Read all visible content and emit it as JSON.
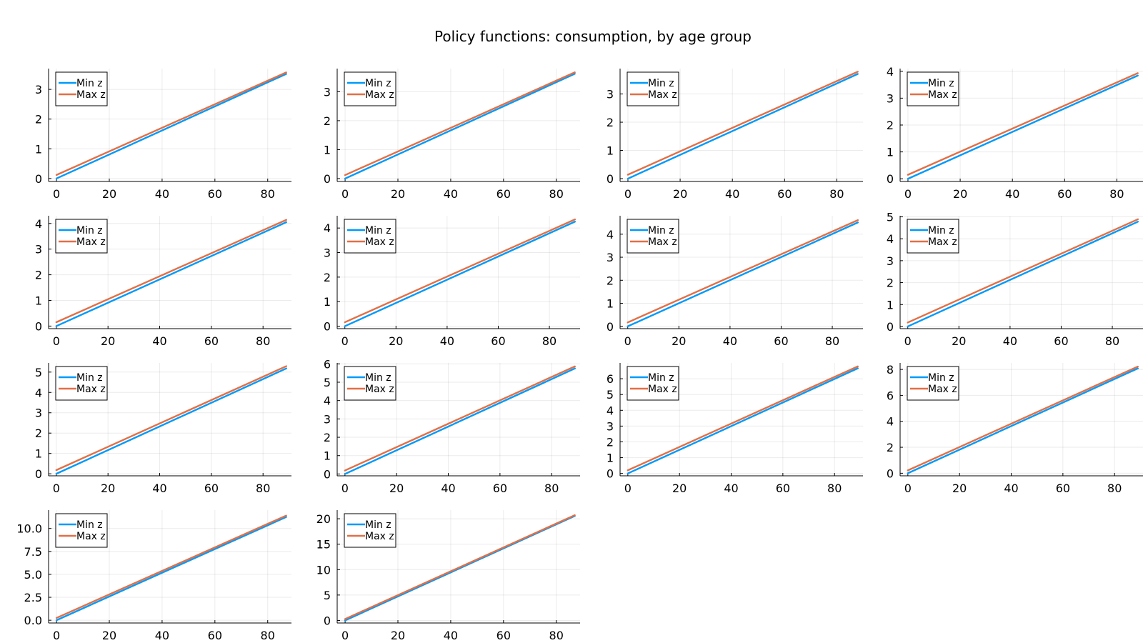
{
  "figure": {
    "title": "Policy functions: consumption, by age group",
    "series_colors": [
      "#009AFA",
      "#E26F46"
    ]
  },
  "chart_data": [
    {
      "type": "line",
      "xlim": [
        -3,
        89
      ],
      "ylim": [
        -0.1,
        3.7
      ],
      "xticks": [
        0,
        20,
        40,
        60,
        80
      ],
      "yticks": [
        0,
        1,
        2,
        3
      ],
      "x": [
        0,
        87
      ],
      "legend": "top-left",
      "grid": true,
      "series": [
        {
          "name": "Min z",
          "values": [
            0.0,
            3.52
          ]
        },
        {
          "name": "Max z",
          "values": [
            0.12,
            3.57
          ]
        }
      ]
    },
    {
      "type": "line",
      "xlim": [
        -3,
        89
      ],
      "ylim": [
        -0.1,
        3.8
      ],
      "xticks": [
        0,
        20,
        40,
        60,
        80
      ],
      "yticks": [
        0,
        1,
        2,
        3
      ],
      "x": [
        0,
        87
      ],
      "legend": "top-left",
      "grid": true,
      "series": [
        {
          "name": "Min z",
          "values": [
            0.0,
            3.62
          ]
        },
        {
          "name": "Max z",
          "values": [
            0.12,
            3.67
          ]
        }
      ]
    },
    {
      "type": "line",
      "xlim": [
        -3,
        90
      ],
      "ylim": [
        -0.1,
        3.9
      ],
      "xticks": [
        0,
        20,
        40,
        60,
        80
      ],
      "yticks": [
        0,
        1,
        2,
        3
      ],
      "x": [
        0,
        88
      ],
      "legend": "top-left",
      "grid": true,
      "series": [
        {
          "name": "Min z",
          "values": [
            0.0,
            3.71
          ]
        },
        {
          "name": "Max z",
          "values": [
            0.14,
            3.79
          ]
        }
      ]
    },
    {
      "type": "line",
      "xlim": [
        -3,
        90
      ],
      "ylim": [
        -0.1,
        4.1
      ],
      "xticks": [
        0,
        20,
        40,
        60,
        80
      ],
      "yticks": [
        0,
        1,
        2,
        3,
        4
      ],
      "x": [
        0,
        88
      ],
      "legend": "top-left",
      "grid": true,
      "series": [
        {
          "name": "Min z",
          "values": [
            0.0,
            3.84
          ]
        },
        {
          "name": "Max z",
          "values": [
            0.15,
            3.93
          ]
        }
      ]
    },
    {
      "type": "line",
      "xlim": [
        -3,
        91
      ],
      "ylim": [
        -0.1,
        4.3
      ],
      "xticks": [
        0,
        20,
        40,
        60,
        80
      ],
      "yticks": [
        0,
        1,
        2,
        3,
        4
      ],
      "x": [
        0,
        89
      ],
      "legend": "top-left",
      "grid": true,
      "series": [
        {
          "name": "Min z",
          "values": [
            0.0,
            4.05
          ]
        },
        {
          "name": "Max z",
          "values": [
            0.15,
            4.14
          ]
        }
      ]
    },
    {
      "type": "line",
      "xlim": [
        -3,
        92
      ],
      "ylim": [
        -0.1,
        4.5
      ],
      "xticks": [
        0,
        20,
        40,
        60,
        80
      ],
      "yticks": [
        0,
        1,
        2,
        3,
        4
      ],
      "x": [
        0,
        90
      ],
      "legend": "top-left",
      "grid": true,
      "series": [
        {
          "name": "Min z",
          "values": [
            0.0,
            4.26
          ]
        },
        {
          "name": "Max z",
          "values": [
            0.16,
            4.35
          ]
        }
      ]
    },
    {
      "type": "line",
      "xlim": [
        -3,
        92
      ],
      "ylim": [
        -0.1,
        4.8
      ],
      "xticks": [
        0,
        20,
        40,
        60,
        80
      ],
      "yticks": [
        0,
        1,
        2,
        3,
        4
      ],
      "x": [
        0,
        90
      ],
      "legend": "top-left",
      "grid": true,
      "series": [
        {
          "name": "Min z",
          "values": [
            0.0,
            4.51
          ]
        },
        {
          "name": "Max z",
          "values": [
            0.17,
            4.61
          ]
        }
      ]
    },
    {
      "type": "line",
      "xlim": [
        -3,
        92
      ],
      "ylim": [
        -0.1,
        5.05
      ],
      "xticks": [
        0,
        20,
        40,
        60,
        80
      ],
      "yticks": [
        0,
        1,
        2,
        3,
        4,
        5
      ],
      "x": [
        0,
        90
      ],
      "legend": "top-left",
      "grid": true,
      "series": [
        {
          "name": "Min z",
          "values": [
            0.0,
            4.78
          ]
        },
        {
          "name": "Max z",
          "values": [
            0.18,
            4.89
          ]
        }
      ]
    },
    {
      "type": "line",
      "xlim": [
        -3,
        91
      ],
      "ylim": [
        -0.1,
        5.45
      ],
      "xticks": [
        0,
        20,
        40,
        60,
        80
      ],
      "yticks": [
        0,
        1,
        2,
        3,
        4,
        5
      ],
      "x": [
        0,
        89
      ],
      "legend": "top-left",
      "grid": true,
      "series": [
        {
          "name": "Min z",
          "values": [
            0.0,
            5.18
          ]
        },
        {
          "name": "Max z",
          "values": [
            0.18,
            5.29
          ]
        }
      ]
    },
    {
      "type": "line",
      "xlim": [
        -3,
        91
      ],
      "ylim": [
        -0.1,
        6.05
      ],
      "xticks": [
        0,
        20,
        40,
        60,
        80
      ],
      "yticks": [
        0,
        1,
        2,
        3,
        4,
        5,
        6
      ],
      "x": [
        0,
        89
      ],
      "legend": "top-left",
      "grid": true,
      "series": [
        {
          "name": "Min z",
          "values": [
            0.0,
            5.75
          ]
        },
        {
          "name": "Max z",
          "values": [
            0.19,
            5.86
          ]
        }
      ]
    },
    {
      "type": "line",
      "xlim": [
        -3,
        91
      ],
      "ylim": [
        -0.15,
        7.0
      ],
      "xticks": [
        0,
        20,
        40,
        60,
        80
      ],
      "yticks": [
        0,
        1,
        2,
        3,
        4,
        5,
        6
      ],
      "x": [
        0,
        89
      ],
      "legend": "top-left",
      "grid": true,
      "series": [
        {
          "name": "Min z",
          "values": [
            0.0,
            6.66
          ]
        },
        {
          "name": "Max z",
          "values": [
            0.2,
            6.78
          ]
        }
      ]
    },
    {
      "type": "line",
      "xlim": [
        -3,
        91
      ],
      "ylim": [
        -0.2,
        8.5
      ],
      "xticks": [
        0,
        20,
        40,
        60,
        80
      ],
      "yticks": [
        0,
        2,
        4,
        6,
        8
      ],
      "x": [
        0,
        89
      ],
      "legend": "top-left",
      "grid": true,
      "series": [
        {
          "name": "Min z",
          "values": [
            0.0,
            8.08
          ]
        },
        {
          "name": "Max z",
          "values": [
            0.22,
            8.22
          ]
        }
      ]
    },
    {
      "type": "line",
      "xlim": [
        -3,
        89
      ],
      "ylim": [
        -0.3,
        12.0
      ],
      "xticks": [
        0,
        20,
        40,
        60,
        80
      ],
      "yticks": [
        0.0,
        2.5,
        5.0,
        7.5,
        10.0
      ],
      "ytick_labels": [
        "0.0",
        "2.5",
        "5.0",
        "7.5",
        "10.0"
      ],
      "x": [
        0,
        87
      ],
      "legend": "top-left",
      "grid": true,
      "series": [
        {
          "name": "Min z",
          "values": [
            0.0,
            11.25
          ]
        },
        {
          "name": "Max z",
          "values": [
            0.25,
            11.4
          ]
        }
      ]
    },
    {
      "type": "line",
      "xlim": [
        -3,
        89
      ],
      "ylim": [
        -0.5,
        21.7
      ],
      "xticks": [
        0,
        20,
        40,
        60,
        80
      ],
      "yticks": [
        0,
        5,
        10,
        15,
        20
      ],
      "x": [
        0,
        87
      ],
      "legend": "top-left",
      "grid": true,
      "series": [
        {
          "name": "Min z",
          "values": [
            0.0,
            20.55
          ]
        },
        {
          "name": "Max z",
          "values": [
            0.28,
            20.7
          ]
        }
      ]
    }
  ]
}
